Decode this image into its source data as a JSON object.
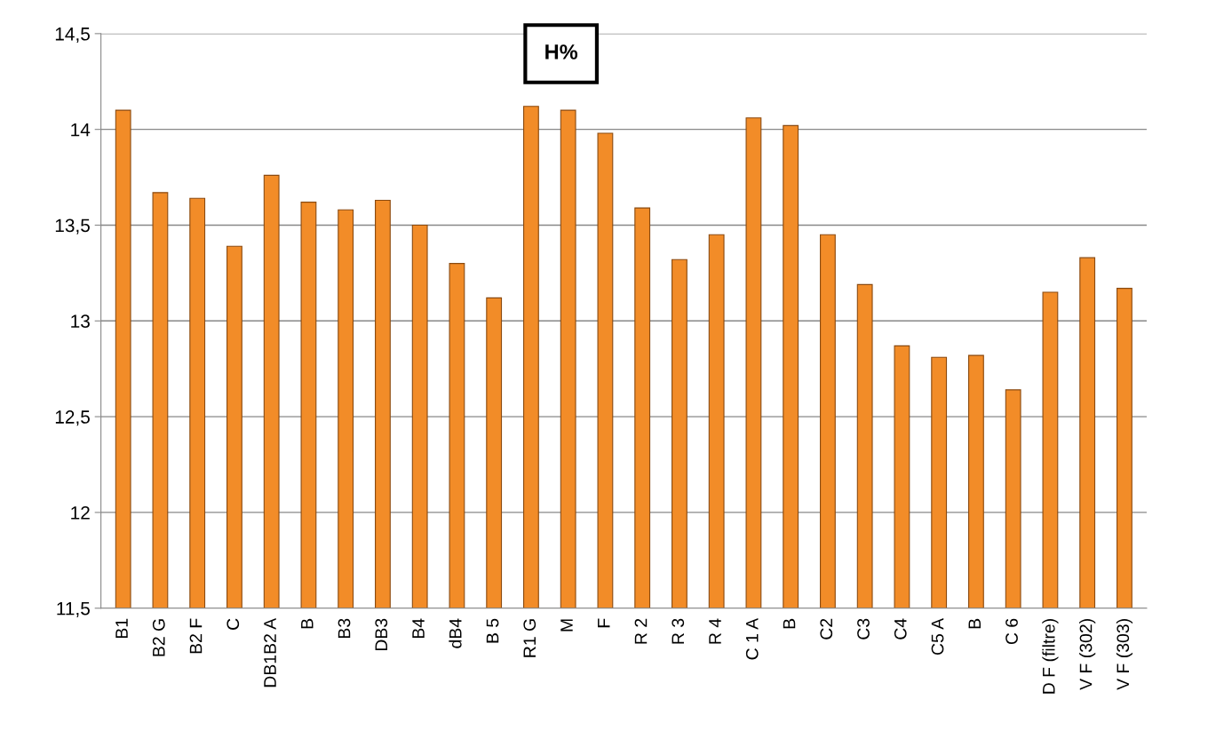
{
  "chart_data": {
    "type": "bar",
    "title": "H%",
    "categories": [
      "B1",
      "B2 G",
      "B2 F",
      "C",
      "DB1B2 A",
      "B",
      "B3",
      "DB3",
      "B4",
      "dB4",
      "B 5",
      "R1 G",
      "M",
      "F",
      "R 2",
      "R 3",
      "R 4",
      "C 1 A",
      "B",
      "C2",
      "C3",
      "C4",
      "C5 A",
      "B",
      "C 6",
      "D F (filtre)",
      "V F (302)",
      "V F (303)"
    ],
    "values": [
      14.1,
      13.67,
      13.64,
      13.39,
      13.76,
      13.62,
      13.58,
      13.63,
      13.5,
      13.3,
      13.12,
      14.12,
      14.1,
      13.98,
      13.59,
      13.32,
      13.45,
      14.06,
      14.02,
      13.45,
      13.19,
      12.87,
      12.81,
      12.82,
      12.64,
      13.15,
      13.33,
      13.17
    ],
    "color": "#f28c28",
    "ylim": [
      11.5,
      14.5
    ],
    "yticks": [
      {
        "value": 11.5,
        "label": "11,5"
      },
      12,
      {
        "value": 12.5,
        "label": "12,5"
      },
      13,
      {
        "value": 13.5,
        "label": "13,5"
      },
      14,
      {
        "value": 14.5,
        "label": "14,5"
      }
    ],
    "grid": "y"
  }
}
